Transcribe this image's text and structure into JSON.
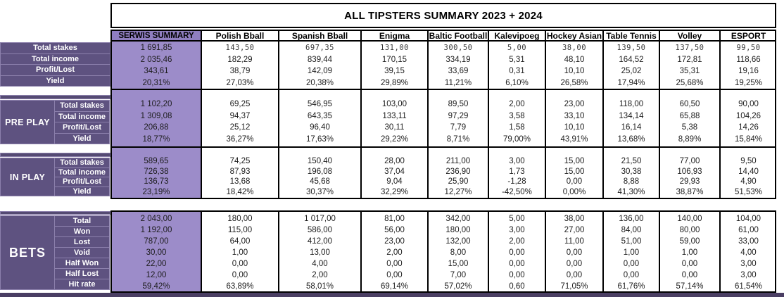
{
  "title": "ALL TIPSTERS SUMMARY 2023 + 2024",
  "columns": [
    "SERWIS SUMMARY",
    "Polish Bball",
    "Spanish Bball",
    "Enigma",
    "Baltic Football",
    "Kalevipoeg",
    "Hockey Asian",
    "Table Tennis",
    "Volley",
    "ESPORT"
  ],
  "sections": [
    {
      "id": "summary",
      "group_label": "",
      "rows": [
        {
          "label": "Total stakes",
          "values": [
            "1 691,85",
            "143,50",
            "697,35",
            "131,00",
            "300,50",
            "5,00",
            "38,00",
            "139,50",
            "137,50",
            "99,50"
          ]
        },
        {
          "label": "Total income",
          "values": [
            "2 035,46",
            "182,29",
            "839,44",
            "170,15",
            "334,19",
            "5,31",
            "48,10",
            "164,52",
            "172,81",
            "118,66"
          ]
        },
        {
          "label": "Profit/Lost",
          "values": [
            "343,61",
            "38,79",
            "142,09",
            "39,15",
            "33,69",
            "0,31",
            "10,10",
            "25,02",
            "35,31",
            "19,16"
          ]
        },
        {
          "label": "Yield",
          "values": [
            "20,31%",
            "27,03%",
            "20,38%",
            "29,89%",
            "11,21%",
            "6,10%",
            "26,58%",
            "17,94%",
            "25,68%",
            "19,25%"
          ]
        }
      ]
    },
    {
      "id": "preplay",
      "group_label": "PRE PLAY",
      "rows": [
        {
          "label": "Total stakes",
          "values": [
            "1 102,20",
            "69,25",
            "546,95",
            "103,00",
            "89,50",
            "2,00",
            "23,00",
            "118,00",
            "60,50",
            "90,00"
          ]
        },
        {
          "label": "Total income",
          "values": [
            "1 309,08",
            "94,37",
            "643,35",
            "133,11",
            "97,29",
            "3,58",
            "33,10",
            "134,14",
            "65,88",
            "104,26"
          ]
        },
        {
          "label": "Profit/Lost",
          "values": [
            "206,88",
            "25,12",
            "96,40",
            "30,11",
            "7,79",
            "1,58",
            "10,10",
            "16,14",
            "5,38",
            "14,26"
          ]
        },
        {
          "label": "Yield",
          "values": [
            "18,77%",
            "36,27%",
            "17,63%",
            "29,23%",
            "8,71%",
            "79,00%",
            "43,91%",
            "13,68%",
            "8,89%",
            "15,84%"
          ]
        }
      ]
    },
    {
      "id": "inplay",
      "group_label": "IN PLAY",
      "rows": [
        {
          "label": "Total stakes",
          "values": [
            "589,65",
            "74,25",
            "150,40",
            "28,00",
            "211,00",
            "3,00",
            "15,00",
            "21,50",
            "77,00",
            "9,50"
          ]
        },
        {
          "label": "Total income",
          "values": [
            "726,38",
            "87,93",
            "196,08",
            "37,04",
            "236,90",
            "1,73",
            "15,00",
            "30,38",
            "106,93",
            "14,40"
          ]
        },
        {
          "label": "Profit/Lost",
          "values": [
            "136,73",
            "13,68",
            "45,68",
            "9,04",
            "25,90",
            "-1,28",
            "0,00",
            "8,88",
            "29,93",
            "4,90"
          ]
        },
        {
          "label": "Yield",
          "values": [
            "23,19%",
            "18,42%",
            "30,37%",
            "32,29%",
            "12,27%",
            "-42,50%",
            "0,00%",
            "41,30%",
            "38,87%",
            "51,53%"
          ]
        }
      ]
    },
    {
      "id": "bets",
      "group_label": "BETS",
      "rows": [
        {
          "label": "Total",
          "values": [
            "2 043,00",
            "180,00",
            "1 017,00",
            "81,00",
            "342,00",
            "5,00",
            "38,00",
            "136,00",
            "140,00",
            "104,00"
          ]
        },
        {
          "label": "Won",
          "values": [
            "1 192,00",
            "115,00",
            "586,00",
            "56,00",
            "180,00",
            "3,00",
            "27,00",
            "84,00",
            "80,00",
            "61,00"
          ]
        },
        {
          "label": "Lost",
          "values": [
            "787,00",
            "64,00",
            "412,00",
            "23,00",
            "132,00",
            "2,00",
            "11,00",
            "51,00",
            "59,00",
            "33,00"
          ]
        },
        {
          "label": "Void",
          "values": [
            "30,00",
            "1,00",
            "13,00",
            "2,00",
            "8,00",
            "0,00",
            "0,00",
            "1,00",
            "1,00",
            "4,00"
          ]
        },
        {
          "label": "Half Won",
          "values": [
            "22,00",
            "0,00",
            "4,00",
            "0,00",
            "15,00",
            "0,00",
            "0,00",
            "0,00",
            "0,00",
            "3,00"
          ]
        },
        {
          "label": "Half Lost",
          "values": [
            "12,00",
            "0,00",
            "2,00",
            "0,00",
            "7,00",
            "0,00",
            "0,00",
            "0,00",
            "0,00",
            "3,00"
          ]
        },
        {
          "label": "Hit rate",
          "values": [
            "59,42%",
            "63,89%",
            "58,01%",
            "69,14%",
            "57,02%",
            "0,60",
            "71,05%",
            "61,76%",
            "57,14%",
            "61,54%"
          ]
        }
      ]
    }
  ],
  "colors": {
    "row_label_bg": "#5E5280",
    "label_border": "#8C80AC",
    "serwis_column_bg": "#9C8CC9",
    "serwis_header_bg": "#8F7EC0",
    "section_strip": "#544A72",
    "bottom_bar": "#4A3E63",
    "grid_border": "#000000"
  }
}
